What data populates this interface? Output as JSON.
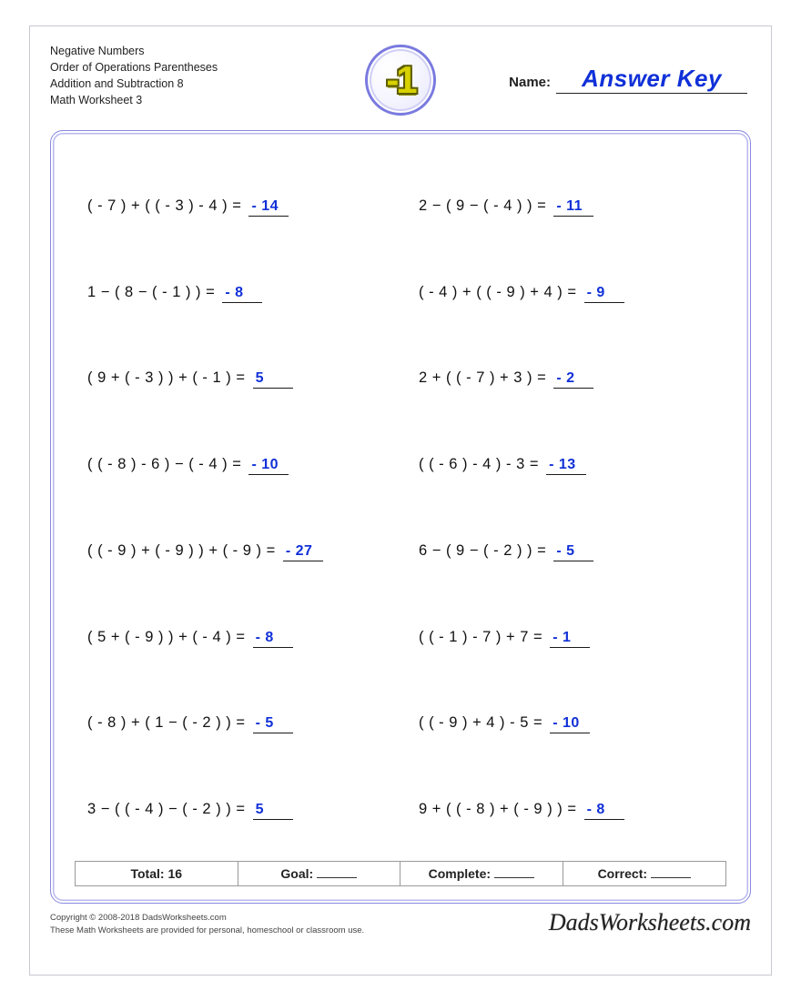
{
  "header": {
    "lines": [
      "Negative Numbers",
      "Order of Operations Parentheses",
      "Addition and Subtraction 8",
      "Math Worksheet 3"
    ],
    "logo_text": "-1",
    "name_label": "Name:",
    "name_value": "Answer Key"
  },
  "colors": {
    "answer_color": "#1030d8",
    "border_color": "#8a8ae0",
    "logo_fill": "#d7d200",
    "logo_stroke": "#5c5c00",
    "text_color": "#111111"
  },
  "problems": [
    {
      "expr": "( - 7 ) + ( ( - 3 ) - 4 ) =",
      "ans": "- 14"
    },
    {
      "expr": "2 − ( 9 − ( - 4 ) ) =",
      "ans": "- 11"
    },
    {
      "expr": "1 − ( 8 − ( - 1 ) ) =",
      "ans": "- 8"
    },
    {
      "expr": "( - 4 ) + ( ( - 9 ) + 4 ) =",
      "ans": "- 9"
    },
    {
      "expr": "( 9 + ( - 3 ) ) + ( - 1 ) =",
      "ans": "5"
    },
    {
      "expr": "2 + ( ( - 7 ) + 3 ) =",
      "ans": "- 2"
    },
    {
      "expr": "( ( - 8 ) - 6 ) − ( - 4 ) =",
      "ans": "- 10"
    },
    {
      "expr": "( ( - 6 ) - 4 ) - 3 =",
      "ans": "- 13"
    },
    {
      "expr": "( ( - 9 ) + ( - 9 ) ) + ( - 9 ) =",
      "ans": "- 27"
    },
    {
      "expr": "6 − ( 9 − ( - 2 ) ) =",
      "ans": "- 5"
    },
    {
      "expr": "( 5 + ( - 9 ) ) + ( - 4 ) =",
      "ans": "- 8"
    },
    {
      "expr": "( ( - 1 ) - 7 ) + 7 =",
      "ans": "- 1"
    },
    {
      "expr": "( - 8 ) + ( 1 − ( - 2 ) ) =",
      "ans": "- 5"
    },
    {
      "expr": "( ( - 9 ) + 4 ) - 5 =",
      "ans": "- 10"
    },
    {
      "expr": "3 − ( ( - 4 ) − ( - 2 ) ) =",
      "ans": "5"
    },
    {
      "expr": "9 + ( ( - 8 ) + ( - 9 ) ) =",
      "ans": "- 8"
    }
  ],
  "score": {
    "total_label": "Total: 16",
    "goal_label": "Goal:",
    "complete_label": "Complete:",
    "correct_label": "Correct:"
  },
  "footer": {
    "copyright_line1": "Copyright © 2008-2018 DadsWorksheets.com",
    "copyright_line2": "These Math Worksheets are provided for personal, homeschool or classroom use.",
    "brand": "DadsWorksheets.com"
  }
}
